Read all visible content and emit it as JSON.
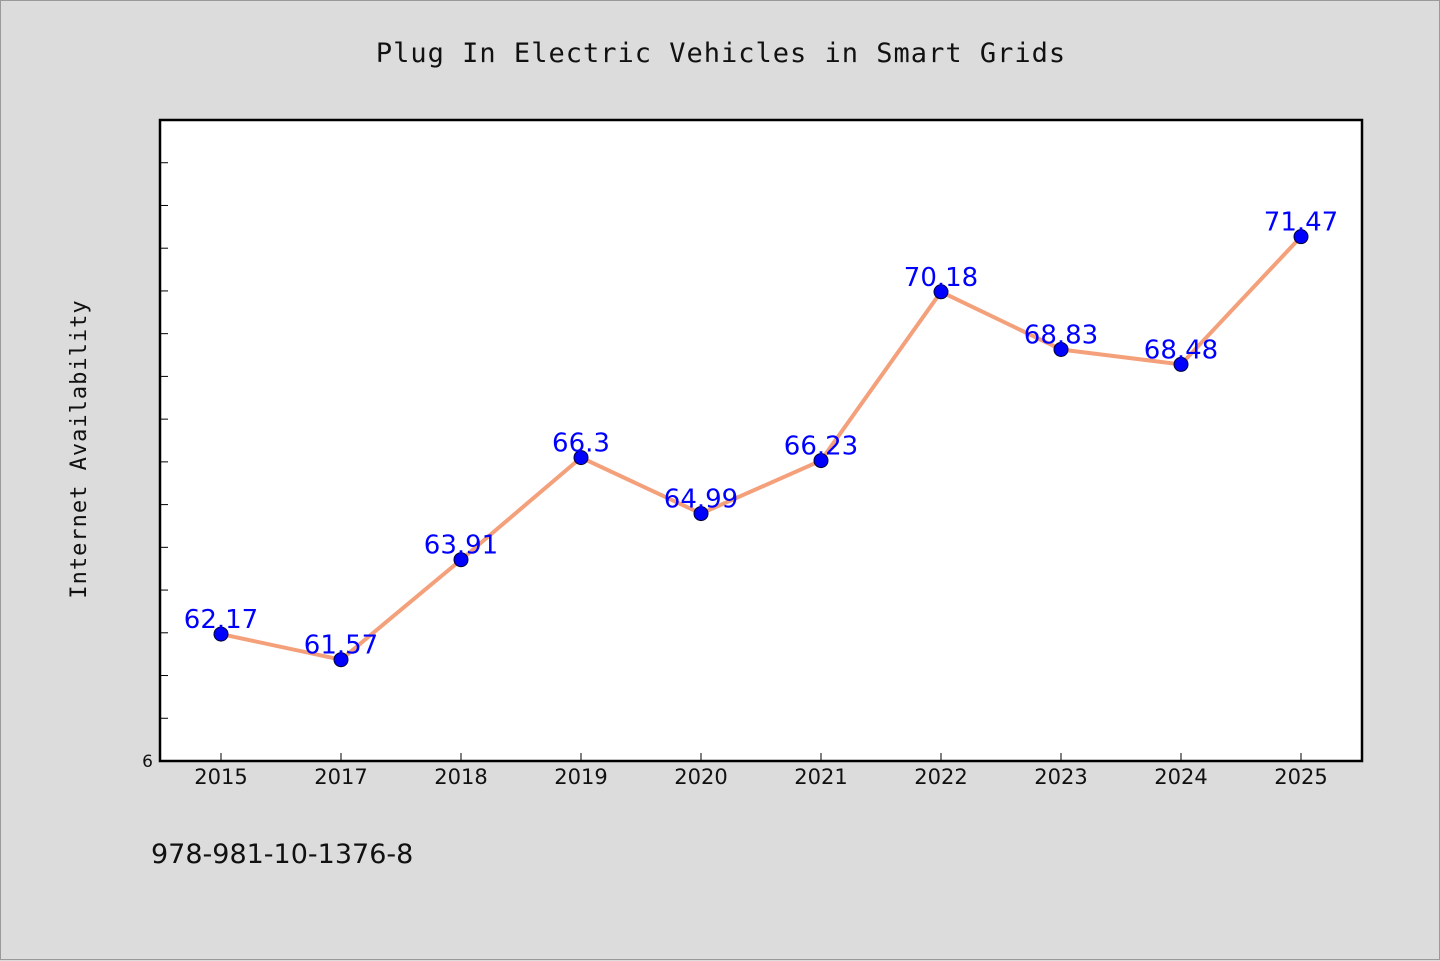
{
  "chart_data": {
    "type": "line",
    "title": "Plug In Electric Vehicles in Smart Grids",
    "ylabel": "Internet Availability",
    "xlabel": "",
    "categories": [
      "2015",
      "2017",
      "2018",
      "2019",
      "2020",
      "2021",
      "2022",
      "2023",
      "2024",
      "2025"
    ],
    "values": [
      62.17,
      61.57,
      63.91,
      66.3,
      64.99,
      66.23,
      70.18,
      68.83,
      68.48,
      71.47
    ],
    "data_labels": [
      "62.17",
      "61.57",
      "63.91",
      "66.3",
      "64.99",
      "66.23",
      "70.18",
      "68.83",
      "68.48",
      "71.47"
    ],
    "ylim": [
      59.2,
      74.2
    ],
    "ytick_label": "6",
    "ytick_count": 15,
    "grid": false,
    "legend": "none",
    "line_color": "#f4a07a",
    "marker_color": "#0000ff",
    "label_color": "#0000ff",
    "footnote": "978-981-10-1376-8"
  }
}
